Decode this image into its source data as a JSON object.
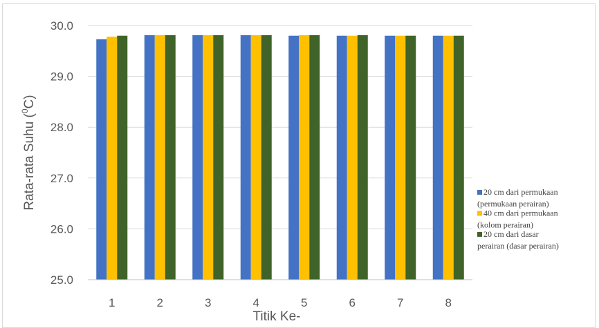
{
  "chart_data": {
    "type": "bar",
    "title": "",
    "xlabel": "Titik Ke-",
    "ylabel_main": "Rata-rata Suhu (",
    "ylabel_sup": "0",
    "ylabel_end": "C)",
    "ylim": [
      25.0,
      30.0
    ],
    "yticks": [
      "25.0",
      "26.0",
      "27.0",
      "28.0",
      "29.0",
      "30.0"
    ],
    "categories": [
      "1",
      "2",
      "3",
      "4",
      "5",
      "6",
      "7",
      "8"
    ],
    "grid": "horizontal major",
    "legend_position": "right",
    "series": [
      {
        "name": "20 cm dari permukaan (permukaan perairan)",
        "legend_lines": [
          "20 cm dari permukaan",
          "(permukaan perairan)"
        ],
        "color": "#4472c4",
        "values": [
          29.73,
          29.81,
          29.81,
          29.81,
          29.8,
          29.8,
          29.8,
          29.8
        ]
      },
      {
        "name": "40 cm dari permukaan (kolom perairan)",
        "legend_lines": [
          "40 cm dari permukaan",
          "(kolom perairan)"
        ],
        "color": "#ffc000",
        "values": [
          29.78,
          29.81,
          29.81,
          29.81,
          29.81,
          29.8,
          29.8,
          29.8
        ]
      },
      {
        "name": "20 cm dari dasar perairan (dasar perairan)",
        "legend_lines": [
          "20 cm dari dasar",
          "perairan (dasar perairan)"
        ],
        "color": "#3f6328",
        "values": [
          29.8,
          29.81,
          29.81,
          29.81,
          29.81,
          29.81,
          29.8,
          29.8
        ]
      }
    ]
  }
}
